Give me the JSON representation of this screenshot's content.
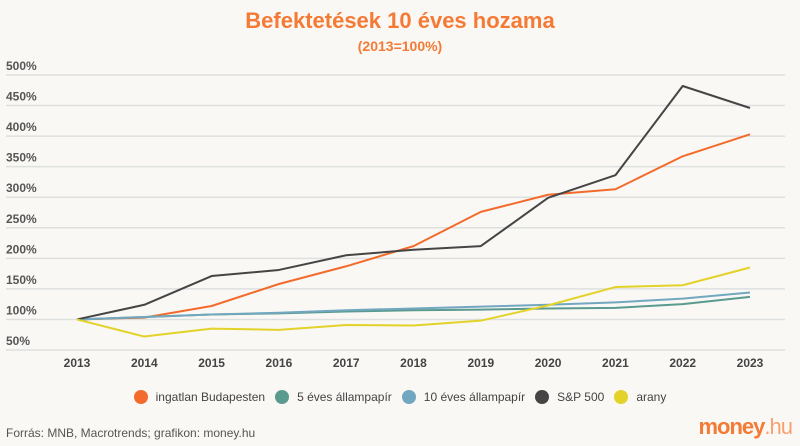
{
  "chart_data": {
    "type": "line",
    "title": "Befektetések 10 éves hozama",
    "subtitle": "(2013=100%)",
    "xlabel": "",
    "ylabel": "",
    "ylim": [
      50,
      500
    ],
    "yticks": [
      50,
      100,
      150,
      200,
      250,
      300,
      350,
      400,
      450,
      500
    ],
    "ytick_labels": [
      "50%",
      "100%",
      "150%",
      "200%",
      "250%",
      "300%",
      "350%",
      "400%",
      "450%",
      "500%"
    ],
    "categories": [
      "2013",
      "2014",
      "2015",
      "2016",
      "2017",
      "2018",
      "2019",
      "2020",
      "2021",
      "2022",
      "2023"
    ],
    "grid": true,
    "legend_position": "bottom",
    "series": [
      {
        "name": "ingatlan Budapesten",
        "color": "#f26b2c",
        "values": [
          100,
          103,
          122,
          158,
          187,
          220,
          276,
          304,
          313,
          367,
          403
        ]
      },
      {
        "name": "5 éves állampapír",
        "color": "#5a9a8f",
        "values": [
          100,
          104,
          108,
          110,
          113,
          115,
          116,
          118,
          119,
          125,
          137
        ]
      },
      {
        "name": "10 éves állampapír",
        "color": "#72a7c0",
        "values": [
          100,
          104,
          108,
          111,
          115,
          118,
          121,
          124,
          128,
          134,
          144
        ]
      },
      {
        "name": "S&P 500",
        "color": "#454545",
        "values": [
          100,
          124,
          171,
          181,
          205,
          214,
          220,
          299,
          336,
          482,
          446
        ]
      },
      {
        "name": "arany",
        "color": "#e3d22a",
        "values": [
          100,
          72,
          85,
          83,
          91,
          90,
          98,
          123,
          153,
          156,
          185
        ]
      }
    ]
  },
  "footer": {
    "source": "Forrás: MNB, Macrotrends; grafikon: money.hu",
    "logo_main": "money",
    "logo_suffix": ".hu"
  }
}
